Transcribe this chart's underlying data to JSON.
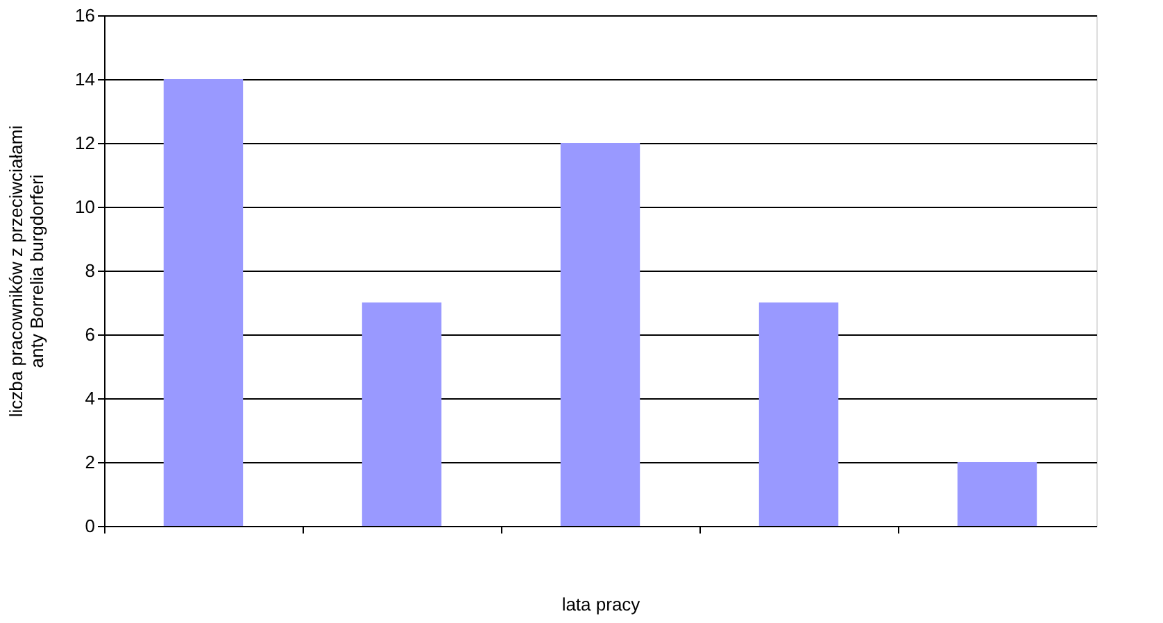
{
  "chart_data": {
    "type": "bar",
    "categories": [
      null,
      null,
      null,
      null,
      null
    ],
    "values": [
      14,
      7,
      12,
      7,
      2
    ],
    "color": "#9999ff",
    "xlabel": "lata pracy",
    "ylabel": "liczba pracowników z przeciwciałami\nanty Borrelia burgdorferi",
    "ylim": [
      0,
      16
    ],
    "yticks": [
      0,
      2,
      4,
      6,
      8,
      10,
      12,
      14,
      16
    ],
    "grid": "y",
    "tick_labels": "y"
  }
}
